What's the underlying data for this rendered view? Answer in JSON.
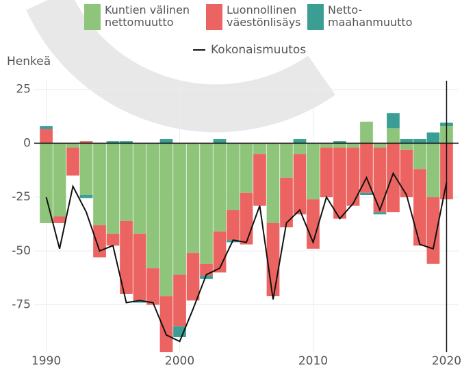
{
  "chart_data": {
    "type": "bar",
    "stacked": true,
    "y_label": "Henkeä",
    "x": [
      1990,
      1991,
      1992,
      1993,
      1994,
      1995,
      1996,
      1997,
      1998,
      1999,
      2000,
      2001,
      2002,
      2003,
      2004,
      2005,
      2006,
      2007,
      2008,
      2009,
      2010,
      2011,
      2012,
      2013,
      2014,
      2015,
      2016,
      2017,
      2018,
      2019,
      2020
    ],
    "series": [
      {
        "name": "Kuntien välinen nettomuutto",
        "color": "#8fc47b",
        "values": [
          -37,
          -34,
          -2,
          -24,
          -38,
          -42,
          -36,
          -42,
          -58,
          -71,
          -61,
          -51,
          -56,
          -41,
          -31,
          -23,
          -5,
          -37,
          -16,
          -5,
          -26,
          -2,
          -2,
          -2,
          10,
          -2,
          7,
          -3,
          -12,
          -25,
          8
        ]
      },
      {
        "name": "Luonnollinen väestönlisäys",
        "color": "#ec6461",
        "values": [
          6.5,
          -3,
          -13,
          1,
          -15,
          -5.5,
          -34,
          -31,
          -17,
          -26,
          -24,
          -22,
          -5.5,
          -19,
          -14,
          -24,
          -24,
          -34,
          -23,
          -28,
          -23,
          -23,
          -33,
          -27,
          -23,
          -30,
          -32,
          -22,
          -35.5,
          -31,
          -26
        ]
      },
      {
        "name": "Netto-maahanmuutto",
        "color": "#3a9e94",
        "values": [
          1.5,
          0,
          0,
          -1.5,
          0,
          1,
          1,
          -1,
          0,
          2,
          -5,
          0,
          -1.5,
          2,
          -1,
          0,
          0,
          0,
          0,
          2,
          0,
          0,
          1,
          0,
          -1,
          -1,
          7,
          2,
          2,
          5,
          1.5
        ]
      }
    ],
    "line": {
      "name": "Kokonaismuutos",
      "color": "#111111",
      "values": [
        -25,
        -49,
        -20,
        -32,
        -50,
        -47.5,
        -74,
        -73,
        -74,
        -89,
        -92,
        -77,
        -61,
        -58,
        -45,
        -46,
        -29,
        -72.5,
        -37,
        -31,
        -46,
        -25,
        -35,
        -28,
        -16,
        -31,
        -14,
        -24,
        -47,
        -49,
        -18
      ]
    },
    "marker_x": 2020,
    "xlim": [
      1989.1,
      2020.9
    ],
    "xticks": [
      1990,
      2000,
      2010,
      2020
    ],
    "ylim": [
      -97,
      29
    ],
    "yticks": [
      25,
      0,
      -25,
      -50,
      -75
    ],
    "grid": true
  }
}
